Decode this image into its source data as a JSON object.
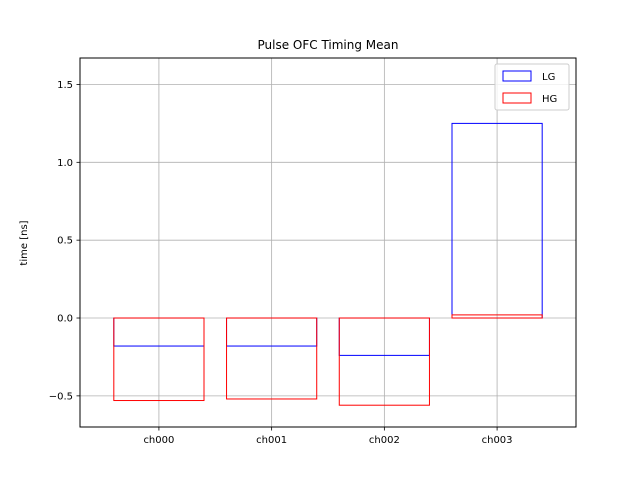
{
  "chart_data": {
    "type": "bar",
    "title": "Pulse OFC Timing Mean",
    "xlabel": "",
    "ylabel": "time [ns]",
    "categories": [
      "ch000",
      "ch001",
      "ch002",
      "ch003"
    ],
    "ylim": [
      -0.7,
      1.67
    ],
    "yticks": [
      -0.5,
      0.0,
      0.5,
      1.0,
      1.5
    ],
    "ytick_labels": [
      "−0.5",
      "0.0",
      "0.5",
      "1.0",
      "1.5"
    ],
    "grid": true,
    "legend_position": "top-right",
    "bar_style": "outline",
    "series": [
      {
        "name": "LG",
        "color": "#0000ff",
        "values": [
          -0.18,
          -0.18,
          -0.24,
          1.25
        ]
      },
      {
        "name": "HG",
        "color": "#ff0000",
        "values": [
          -0.53,
          -0.52,
          -0.56,
          0.02
        ]
      }
    ]
  }
}
